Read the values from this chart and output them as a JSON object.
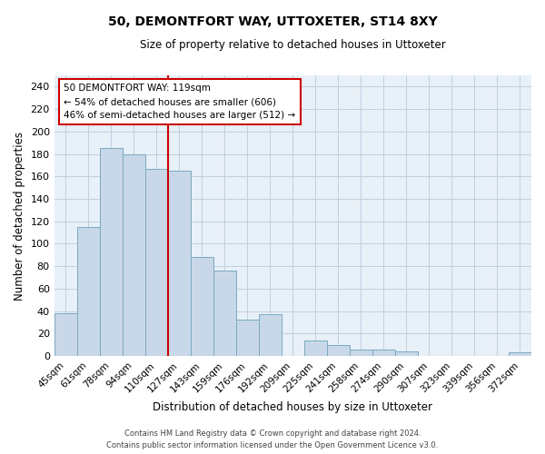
{
  "title": "50, DEMONTFORT WAY, UTTOXETER, ST14 8XY",
  "subtitle": "Size of property relative to detached houses in Uttoxeter",
  "xlabel": "Distribution of detached houses by size in Uttoxeter",
  "ylabel": "Number of detached properties",
  "bar_labels": [
    "45sqm",
    "61sqm",
    "78sqm",
    "94sqm",
    "110sqm",
    "127sqm",
    "143sqm",
    "159sqm",
    "176sqm",
    "192sqm",
    "209sqm",
    "225sqm",
    "241sqm",
    "258sqm",
    "274sqm",
    "290sqm",
    "307sqm",
    "323sqm",
    "339sqm",
    "356sqm",
    "372sqm"
  ],
  "bar_values": [
    38,
    115,
    185,
    180,
    167,
    165,
    88,
    76,
    32,
    37,
    0,
    14,
    10,
    6,
    6,
    4,
    0,
    0,
    0,
    0,
    3
  ],
  "bar_color": "#c8d8e8",
  "bar_edge_color": "#7aaabf",
  "vline_x": 5.0,
  "vline_color": "#cc0000",
  "annotation_line1": "50 DEMONTFORT WAY: 119sqm",
  "annotation_line2": "← 54% of detached houses are smaller (606)",
  "annotation_line3": "46% of semi-detached houses are larger (512) →",
  "annotation_box_color": "#ffffff",
  "annotation_box_edge": "#cc0000",
  "grid_color": "#c0d0e0",
  "bg_color": "#e8f0f8",
  "ylim": [
    0,
    250
  ],
  "yticks": [
    0,
    20,
    40,
    60,
    80,
    100,
    120,
    140,
    160,
    180,
    200,
    220,
    240
  ],
  "footer_line1": "Contains HM Land Registry data © Crown copyright and database right 2024.",
  "footer_line2": "Contains public sector information licensed under the Open Government Licence v3.0."
}
